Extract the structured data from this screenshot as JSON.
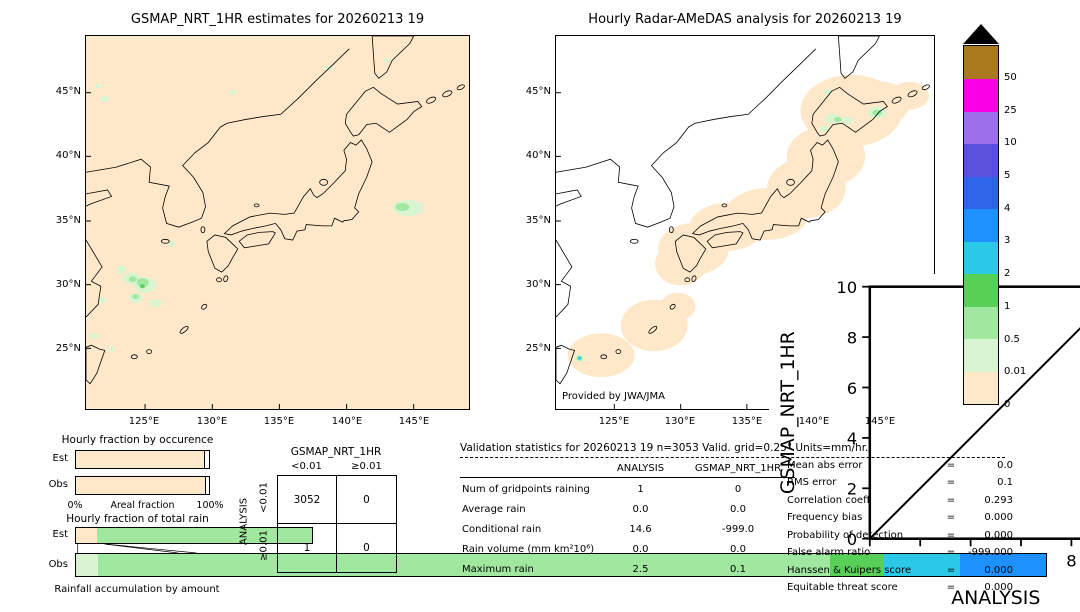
{
  "left_map": {
    "title": "GSMAP_NRT_1HR estimates for 20260213 19",
    "lat_ticks": [
      "45°N",
      "40°N",
      "35°N",
      "30°N",
      "25°N"
    ],
    "lon_ticks": [
      "125°E",
      "130°E",
      "135°E",
      "140°E",
      "145°E"
    ]
  },
  "right_map": {
    "title": "Hourly Radar-AMeDAS analysis for 20260213 19",
    "lat_ticks": [
      "45°N",
      "40°N",
      "35°N",
      "30°N",
      "25°N"
    ],
    "lon_ticks": [
      "125°E",
      "130°E",
      "135°E",
      "140°E",
      "145°E"
    ],
    "credit": "Provided by JWA/JMA",
    "inset": {
      "xlabel": "ANALYSIS",
      "ylabel": "GSMAP_NRT_1HR",
      "ticks": [
        "0",
        "2",
        "4",
        "6",
        "8",
        "10"
      ]
    }
  },
  "colorbar": {
    "tick_labels_top_to_bottom": [
      "50",
      "25",
      "10",
      "5",
      "4",
      "3",
      "2",
      "1",
      "0.5",
      "0.01",
      "0"
    ],
    "over_color": "#a8791f",
    "extreme_color": "#000000",
    "colors_top_to_bottom": [
      "#fa00e6",
      "#9d6fe8",
      "#5a50dd",
      "#2e64e8",
      "#1e90ff",
      "#2cc8e8",
      "#58d058",
      "#a0e8a0",
      "#d8f4d0",
      "#ffe8ca"
    ]
  },
  "occurrence_chart": {
    "title": "Hourly fraction by occurence",
    "x_min_label": "0%",
    "x_axis_label": "Areal fraction",
    "x_max_label": "100%",
    "rows": [
      {
        "label": "Est",
        "fill_pct": 97,
        "fill_color": "#ffe8ca"
      },
      {
        "label": "Obs",
        "fill_pct": 97.5,
        "fill_color": "#ffe8ca"
      }
    ]
  },
  "total_rain_chart": {
    "title": "Hourly fraction of total rain",
    "caption": "Rainfall accumulation by amount",
    "rows": [
      {
        "label": "Est",
        "total_pct": 22,
        "segments": [
          {
            "color": "#ffe8ca",
            "pct": 2
          },
          {
            "color": "#a0e8a0",
            "pct": 20
          }
        ]
      },
      {
        "label": "Obs",
        "total_pct": 90,
        "segments": [
          {
            "color": "#d8f4d0",
            "pct": 2
          },
          {
            "color": "#a0e8a0",
            "pct": 68
          },
          {
            "color": "#58d058",
            "pct": 5
          },
          {
            "color": "#2cc8e8",
            "pct": 7
          },
          {
            "color": "#1e90ff",
            "pct": 8
          }
        ]
      }
    ]
  },
  "contingency": {
    "title": "GSMAP_NRT_1HR",
    "side_label": "ANALYSIS",
    "col_headers": [
      "<0.01",
      "≥0.01"
    ],
    "row_headers": [
      "<0.01",
      "≥0.01"
    ],
    "values": [
      [
        "3052",
        "0"
      ],
      [
        "1",
        "0"
      ]
    ]
  },
  "stats": {
    "title": "Validation statistics for 20260213 19  n=3053 Valid. grid=0.25° Units=mm/hr.",
    "col_headers": [
      "ANALYSIS",
      "GSMAP_NRT_1HR"
    ],
    "separator": "=",
    "rows": [
      {
        "label": "Num of gridpoints raining",
        "analysis": "1",
        "gsmap": "0"
      },
      {
        "label": "Average rain",
        "analysis": "0.0",
        "gsmap": "0.0"
      },
      {
        "label": "Conditional rain",
        "analysis": "14.6",
        "gsmap": "-999.0"
      },
      {
        "label": "Rain volume (mm km²10⁶)",
        "analysis": "0.0",
        "gsmap": "0.0"
      },
      {
        "label": "Maximum rain",
        "analysis": "2.5",
        "gsmap": "0.1"
      }
    ],
    "side_stats": [
      {
        "label": "Mean abs error",
        "value": "0.0"
      },
      {
        "label": "RMS error",
        "value": "0.1"
      },
      {
        "label": "Correlation coeff",
        "value": "0.293"
      },
      {
        "label": "Frequency bias",
        "value": "0.000"
      },
      {
        "label": "Probability of detection",
        "value": "0.000"
      },
      {
        "label": "False alarm ratio",
        "value": "-999.000"
      },
      {
        "label": "Hanssen & Kuipers score",
        "value": "0.000"
      },
      {
        "label": "Equitable threat score",
        "value": "0.000"
      }
    ]
  },
  "chart_data": [
    {
      "type": "heatmap",
      "title": "GSMAP_NRT_1HR estimates for 20260213 19",
      "units": "mm/hr",
      "x_ticks": [
        "125°E",
        "130°E",
        "135°E",
        "140°E",
        "145°E"
      ],
      "y_ticks": [
        "45°N",
        "40°N",
        "35°N",
        "30°N",
        "25°N"
      ],
      "scale_boundaries": [
        0,
        0.01,
        0.5,
        1,
        2,
        3,
        4,
        5,
        10,
        25,
        50
      ],
      "features": [
        {
          "region": "East China Sea 123-126°E, 28.5-31.5°N",
          "value_range": "0.01-2"
        },
        {
          "region": "Pacific 143.5-145.5°E, 35.5-36.5°N",
          "value_range": "0.01-1"
        },
        {
          "region": "elsewhere",
          "value_range": "0"
        }
      ]
    },
    {
      "type": "heatmap",
      "title": "Hourly Radar-AMeDAS analysis for 20260213 19",
      "units": "mm/hr",
      "x_ticks": [
        "125°E",
        "130°E",
        "135°E",
        "140°E",
        "145°E"
      ],
      "y_ticks": [
        "45°N",
        "40°N",
        "35°N",
        "30°N",
        "25°N"
      ],
      "features": [
        {
          "region": "radar coverage band along Japanese archipelago",
          "value_range": "0"
        },
        {
          "region": "Hokkaido 140.5-145.5°E, 42-44°N",
          "value_range": "0.01-1"
        },
        {
          "region": "near 122.5°E, 24.3°N",
          "value_range": "0.01-3"
        }
      ]
    },
    {
      "type": "scatter",
      "title": "GSMAP_NRT_1HR vs ANALYSIS (inset)",
      "xlabel": "ANALYSIS",
      "ylabel": "GSMAP_NRT_1HR",
      "xlim": [
        0,
        10
      ],
      "ylim": [
        0,
        10
      ],
      "diagonal_line": true,
      "points": []
    },
    {
      "type": "bar",
      "title": "Hourly fraction by occurence",
      "orientation": "horizontal",
      "categories": [
        "Est",
        "Obs"
      ],
      "series": [
        {
          "name": "areal fraction of lowest bin",
          "values": [
            97,
            97.5
          ],
          "color": "#ffe8ca"
        }
      ],
      "xlabel": "Areal fraction",
      "xlim_labels": [
        "0%",
        "100%"
      ]
    },
    {
      "type": "bar",
      "title": "Hourly fraction of total rain",
      "orientation": "horizontal",
      "stacked": true,
      "categories": [
        "Est",
        "Obs"
      ],
      "series_est": [
        {
          "pct": 2,
          "color": "#ffe8ca"
        },
        {
          "pct": 20,
          "color": "#a0e8a0"
        }
      ],
      "series_obs": [
        {
          "pct": 2,
          "color": "#d8f4d0"
        },
        {
          "pct": 68,
          "color": "#a0e8a0"
        },
        {
          "pct": 5,
          "color": "#58d058"
        },
        {
          "pct": 7,
          "color": "#2cc8e8"
        },
        {
          "pct": 8,
          "color": "#1e90ff"
        }
      ],
      "caption": "Rainfall accumulation by amount"
    },
    {
      "type": "table",
      "title": "GSMAP_NRT_1HR / ANALYSIS contingency",
      "col_headers": [
        "<0.01",
        "≥0.01"
      ],
      "row_headers": [
        "<0.01",
        "≥0.01"
      ],
      "values": [
        [
          3052,
          0
        ],
        [
          1,
          0
        ]
      ]
    },
    {
      "type": "table",
      "title": "Validation statistics for 20260213 19",
      "n": 3053,
      "grid": "0.25°",
      "units": "mm/hr",
      "columns": [
        "ANALYSIS",
        "GSMAP_NRT_1HR"
      ],
      "rows": [
        [
          "Num of gridpoints raining",
          1,
          0
        ],
        [
          "Average rain",
          0.0,
          0.0
        ],
        [
          "Conditional rain",
          14.6,
          -999.0
        ],
        [
          "Rain volume (mm km²10⁶)",
          0.0,
          0.0
        ],
        [
          "Maximum rain",
          2.5,
          0.1
        ]
      ],
      "scores": {
        "Mean abs error": 0.0,
        "RMS error": 0.1,
        "Correlation coeff": 0.293,
        "Frequency bias": 0.0,
        "Probability of detection": 0.0,
        "False alarm ratio": -999.0,
        "Hanssen & Kuipers score": 0.0,
        "Equitable threat score": 0.0
      }
    }
  ]
}
